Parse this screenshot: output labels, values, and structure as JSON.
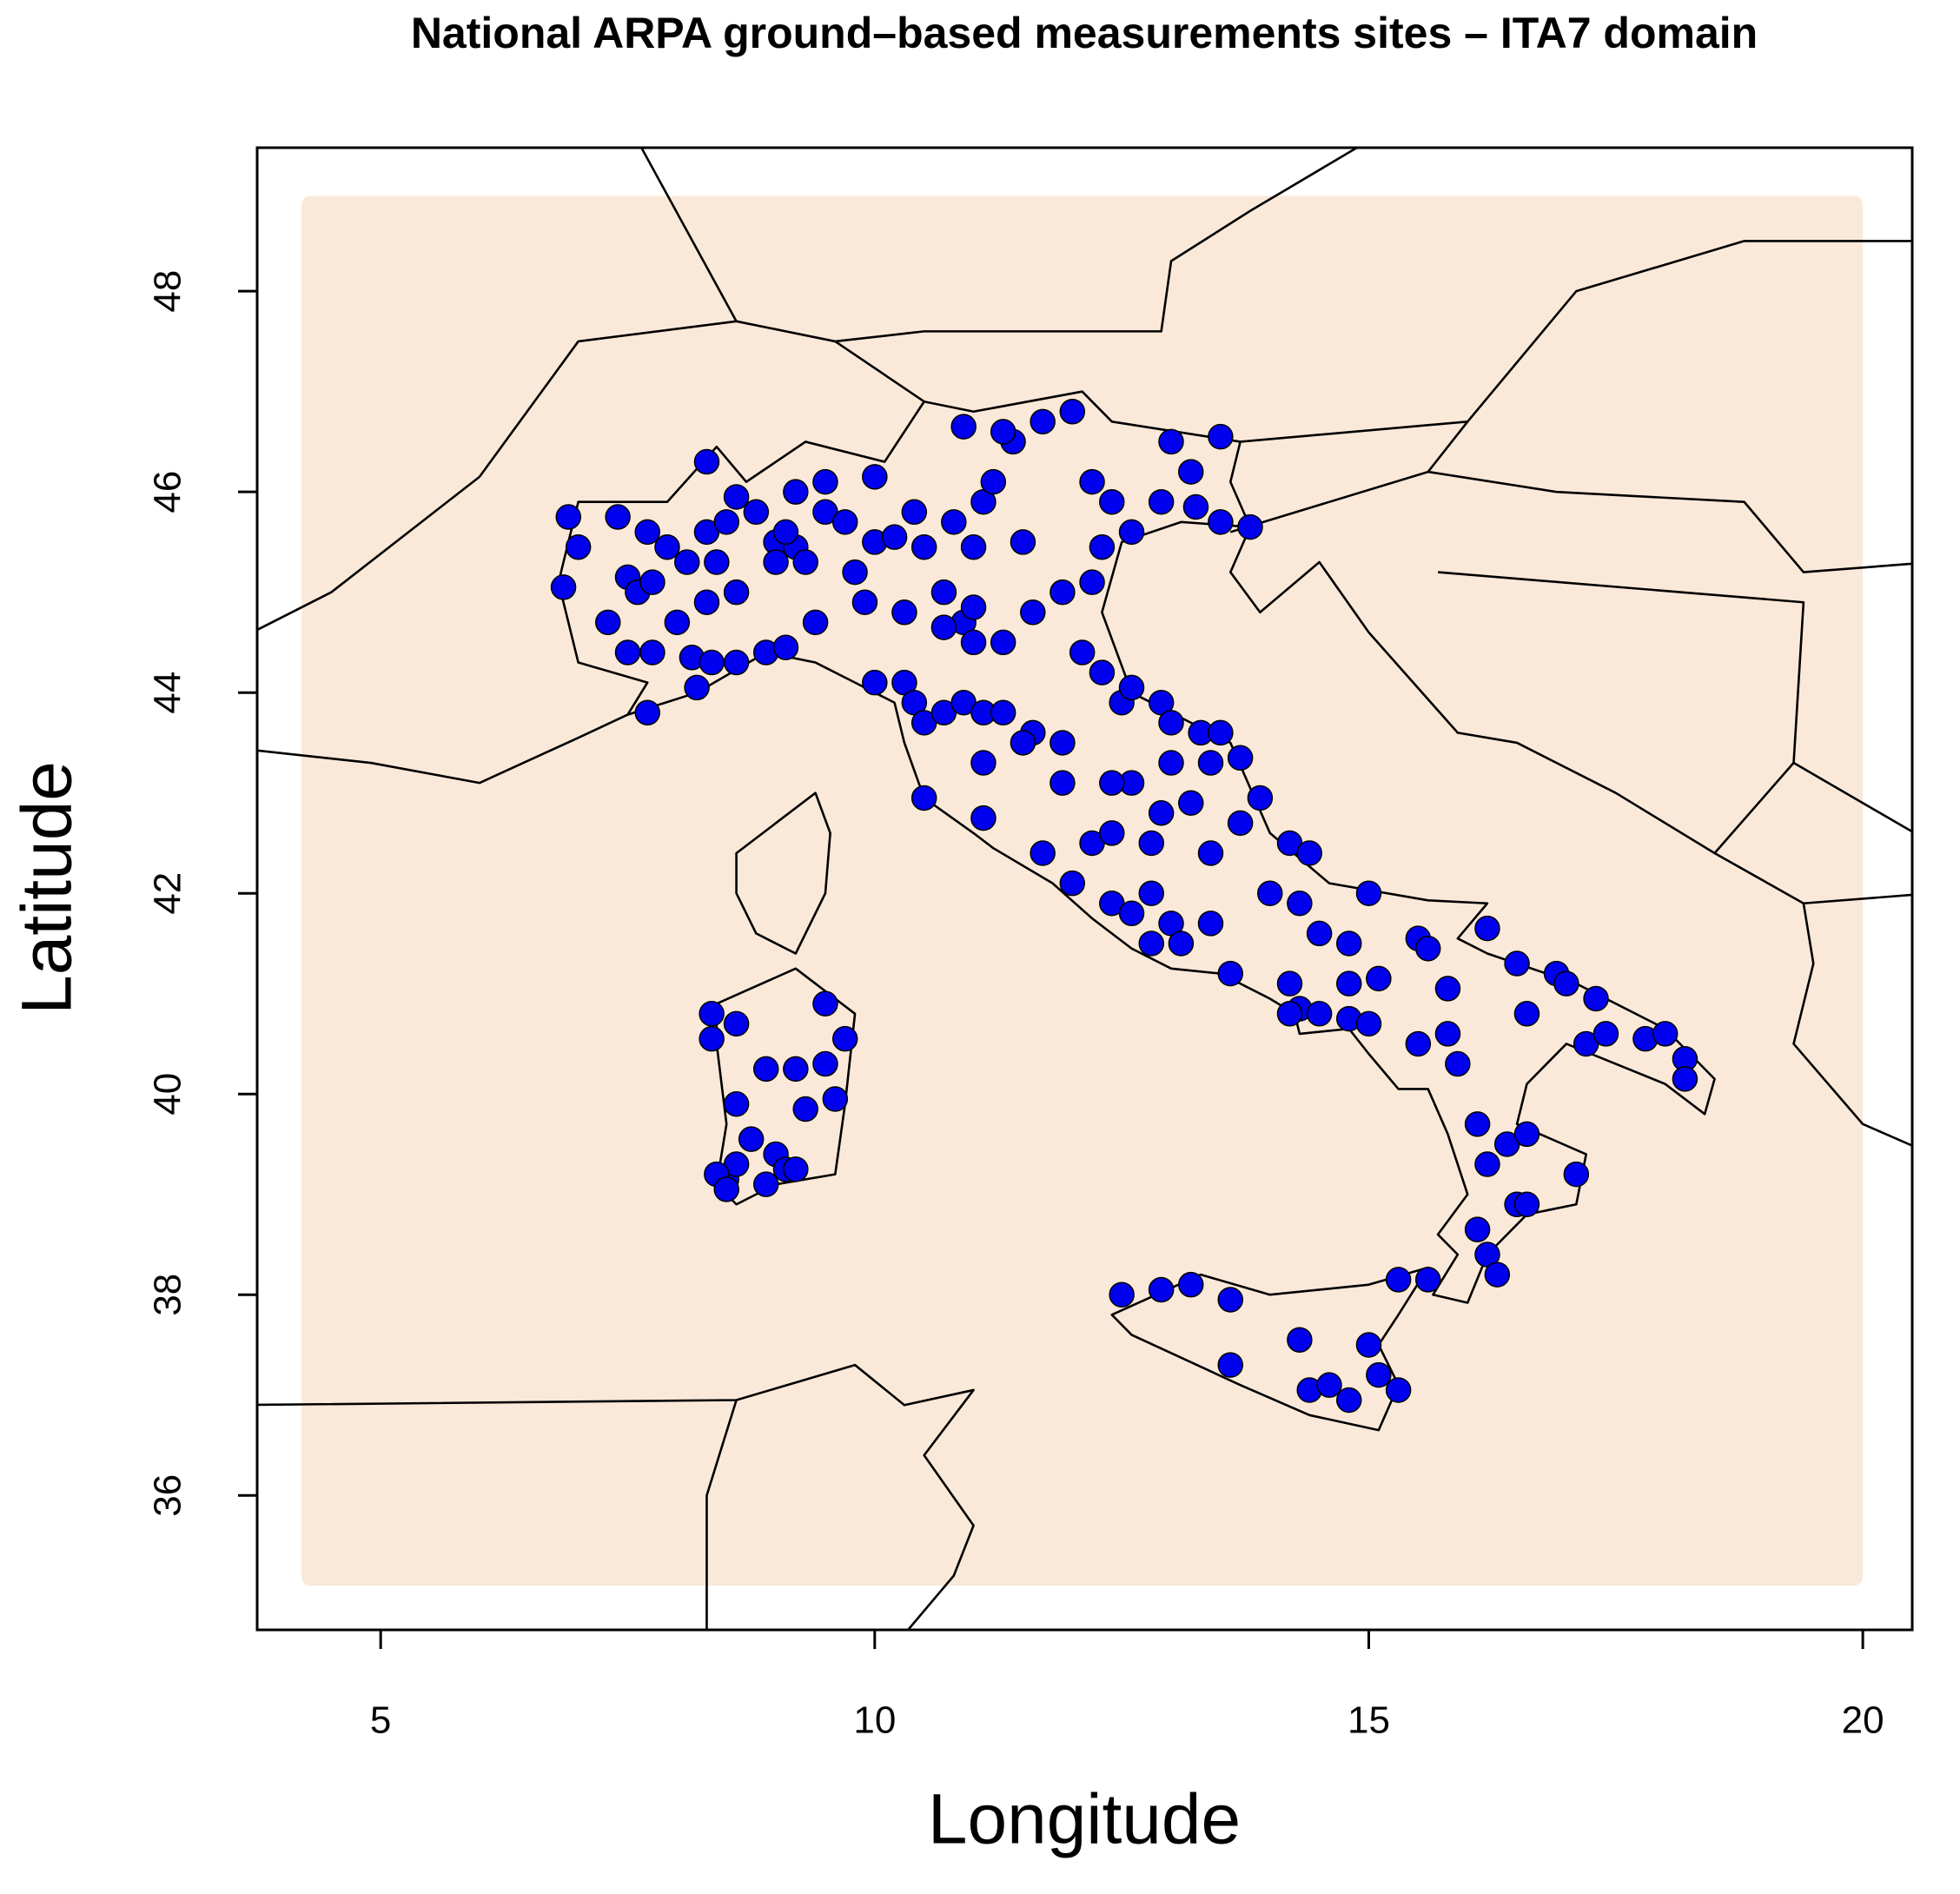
{
  "chart_data": {
    "type": "scatter",
    "title": "National ARPA ground–based measurements sites – ITA7 domain",
    "xlabel": "Longitude",
    "ylabel": "Latitude",
    "xlim": [
      3.75,
      20.5
    ],
    "ylim": [
      34.66,
      49.43
    ],
    "xticks": [
      5,
      10,
      15,
      20
    ],
    "yticks": [
      36,
      38,
      40,
      42,
      44,
      46,
      48
    ],
    "grid": false,
    "color": "#0000ee",
    "x": [
      6.9,
      7.4,
      7.0,
      6.85,
      7.5,
      7.6,
      7.75,
      7.3,
      7.5,
      7.75,
      7.7,
      8.0,
      8.3,
      8.15,
      8.35,
      8.6,
      8.2,
      7.7,
      7.9,
      8.1,
      8.3,
      8.3,
      8.6,
      8.5,
      8.4,
      8.6,
      8.9,
      9.1,
      9.4,
      8.8,
      9.0,
      9.2,
      9.1,
      9.3,
      9.5,
      9.7,
      9.5,
      9.2,
      9.0,
      9.8,
      9.9,
      10.0,
      10.2,
      10.5,
      10.4,
      10.0,
      10.7,
      10.9,
      11.0,
      11.3,
      11.6,
      11.9,
      11.5,
      11.0,
      10.8,
      11.1,
      11.2,
      11.4,
      11.7,
      12.0,
      10.9,
      11.3,
      12.2,
      12.4,
      12.3,
      12.6,
      13.0,
      13.2,
      13.25,
      13.5,
      13.8,
      13.5,
      12.9,
      12.2,
      12.1,
      12.3,
      12.5,
      12.6,
      12.9,
      13.0,
      13.3,
      13.5,
      13.0,
      13.4,
      13.7,
      13.9,
      13.2,
      13.4,
      13.7,
      14.2,
      14.4,
      14.0,
      14.3,
      14.5,
      14.8,
      15.0,
      14.2,
      14.3,
      14.5,
      14.8,
      14.2,
      14.8,
      15.0,
      15.1,
      15.5,
      15.6,
      15.8,
      15.5,
      15.8,
      15.9,
      16.2,
      16.5,
      16.9,
      17.0,
      16.6,
      17.3,
      17.2,
      17.4,
      17.8,
      18.0,
      18.2,
      18.2,
      16.1,
      16.2,
      16.4,
      16.6,
      17.1,
      16.5,
      16.6,
      16.1,
      16.2,
      16.3,
      15.3,
      15.6,
      12.5,
      12.9,
      13.2,
      13.6,
      13.6,
      14.3,
      14.4,
      14.6,
      14.8,
      15.0,
      15.1,
      15.3,
      11.0,
      10.7,
      10.3,
      10.0,
      10.3,
      10.4,
      10.5,
      10.7,
      10.9,
      11.1,
      11.3,
      11.6,
      11.1,
      11.5,
      11.9,
      11.9,
      11.1,
      10.5,
      11.7,
      12.0,
      12.4,
      12.6,
      12.8,
      13.0,
      13.4,
      12.8,
      13.1,
      13.6,
      12.2,
      12.4,
      12.6,
      12.4,
      12.8,
      12.9,
      8.35,
      8.35,
      8.6,
      8.9,
      9.2,
      9.5,
      9.5,
      9.7,
      9.6,
      9.3,
      8.6,
      8.75,
      9.0,
      9.1,
      9.2,
      8.5,
      8.6,
      8.9,
      8.4,
      8.5
    ],
    "values": [
      45.75,
      45.75,
      45.45,
      45.05,
      45.15,
      45.0,
      45.1,
      44.7,
      44.4,
      44.4,
      43.8,
      44.7,
      44.9,
      44.35,
      44.3,
      44.3,
      44.05,
      45.6,
      45.45,
      45.3,
      45.6,
      46.3,
      45.95,
      45.7,
      45.3,
      45.0,
      44.4,
      44.45,
      44.7,
      45.8,
      45.5,
      45.45,
      45.6,
      45.3,
      45.8,
      45.7,
      46.1,
      46.0,
      45.3,
      45.2,
      44.9,
      45.5,
      45.55,
      45.45,
      45.8,
      46.15,
      45.0,
      44.7,
      44.5,
      44.5,
      44.8,
      45.0,
      45.5,
      45.45,
      45.7,
      45.9,
      46.1,
      46.5,
      46.7,
      46.8,
      46.65,
      46.6,
      46.1,
      45.9,
      45.45,
      45.6,
      46.5,
      46.2,
      45.85,
      45.7,
      45.65,
      46.55,
      45.9,
      45.1,
      44.4,
      44.2,
      43.9,
      44.05,
      43.9,
      43.7,
      43.6,
      43.6,
      43.3,
      43.3,
      43.35,
      42.95,
      42.9,
      42.4,
      42.7,
      42.5,
      42.4,
      42.0,
      41.9,
      41.6,
      41.5,
      42.0,
      41.1,
      40.85,
      40.8,
      40.75,
      40.8,
      41.1,
      40.7,
      41.15,
      41.55,
      41.45,
      41.05,
      40.5,
      40.6,
      40.3,
      41.65,
      41.3,
      41.2,
      41.1,
      40.8,
      40.95,
      40.5,
      40.6,
      40.55,
      40.6,
      40.35,
      40.15,
      39.7,
      39.3,
      39.5,
      39.6,
      39.2,
      38.9,
      38.9,
      38.65,
      38.4,
      38.2,
      38.15,
      38.15,
      38.0,
      38.05,
      38.1,
      37.95,
      37.3,
      37.55,
      37.05,
      37.1,
      36.95,
      37.5,
      37.2,
      37.05,
      44.85,
      44.65,
      44.8,
      44.1,
      44.1,
      43.9,
      43.7,
      43.8,
      43.9,
      43.8,
      43.8,
      43.6,
      43.3,
      43.5,
      43.5,
      43.1,
      42.75,
      42.95,
      42.4,
      42.1,
      41.9,
      41.8,
      42.0,
      41.7,
      41.7,
      41.5,
      41.5,
      41.2,
      42.5,
      42.6,
      43.1,
      43.1,
      42.5,
      42.8,
      40.8,
      40.55,
      40.7,
      40.25,
      40.25,
      40.3,
      40.9,
      40.55,
      39.95,
      39.85,
      39.9,
      39.55,
      39.4,
      39.25,
      39.25,
      39.15,
      39.3,
      39.1,
      39.2,
      39.05
    ]
  }
}
